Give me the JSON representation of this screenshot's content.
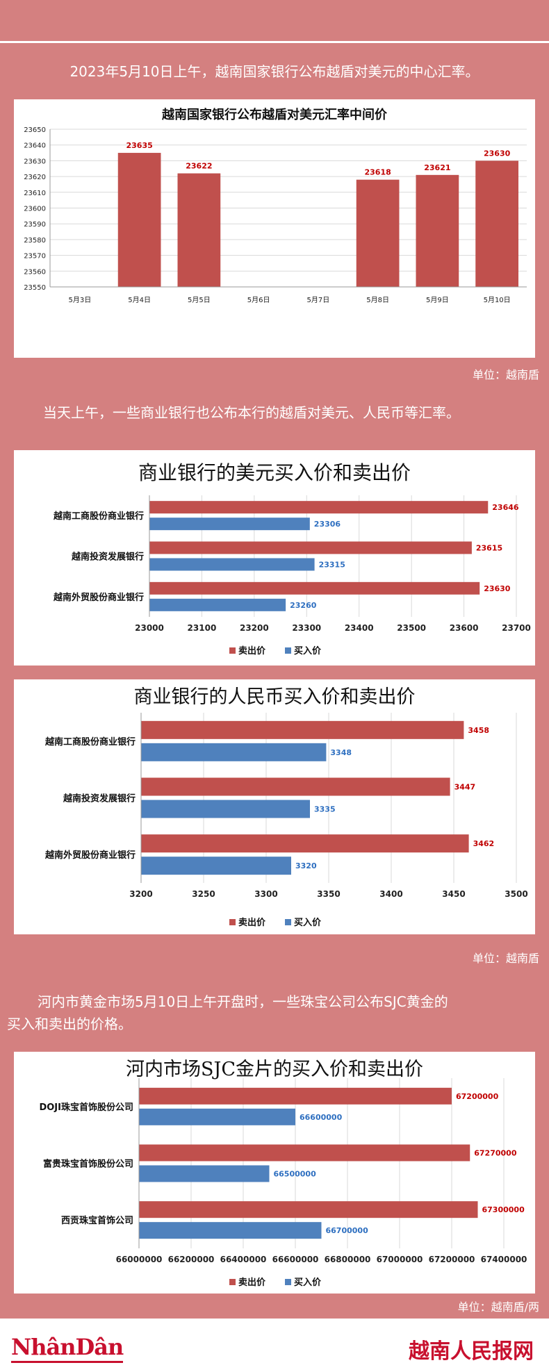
{
  "texts": {
    "intro1": "2023年5月10日上午，越南国家银行公布越盾对美元的中心汇率。",
    "unit1": "单位：越南盾",
    "intro2": "当天上午，一些商业银行也公布本行的越盾对美元、人民币等汇率。",
    "unit2": "单位：越南盾",
    "intro3a": "河内市黄金市场5月10日上午开盘时，一些珠宝公司公布SJC黄金的",
    "intro3b": "买入和卖出的价格。",
    "unit3": "单位：越南盾/两",
    "logo_left": "NhânDân",
    "logo_right": "越南人民报网"
  },
  "colors": {
    "sell": "#c0504d",
    "buy": "#4f81bd",
    "sell_label": "#c00000",
    "buy_label": "#2e6fc0",
    "background": "#d48080"
  },
  "chart_data": [
    {
      "type": "bar",
      "title": "越南国家银行公布越盾对美元汇率中间价",
      "categories": [
        "5月3日",
        "5月4日",
        "5月5日",
        "5月6日",
        "5月7日",
        "5月8日",
        "5月9日",
        "5月10日"
      ],
      "values": [
        null,
        23635,
        23622,
        null,
        null,
        23618,
        23621,
        23630
      ],
      "ylim": [
        23550,
        23650
      ],
      "yticks": [
        23550,
        23560,
        23570,
        23580,
        23590,
        23600,
        23610,
        23620,
        23630,
        23640,
        23650
      ],
      "grid": true
    },
    {
      "type": "bar",
      "orientation": "horizontal",
      "title": "商业银行的美元买入价和卖出价",
      "categories": [
        "越南工商股份商业银行",
        "越南投资发展银行",
        "越南外贸股份商业银行"
      ],
      "series": [
        {
          "name": "卖出价",
          "values": [
            23646,
            23615,
            23630
          ]
        },
        {
          "name": "买入价",
          "values": [
            23306,
            23315,
            23260
          ]
        }
      ],
      "xlim": [
        23000,
        23700
      ],
      "xticks": [
        23000,
        23100,
        23200,
        23300,
        23400,
        23500,
        23600,
        23700
      ],
      "grid": true,
      "legend": "bottom"
    },
    {
      "type": "bar",
      "orientation": "horizontal",
      "title": "商业银行的人民币买入价和卖出价",
      "categories": [
        "越南工商股份商业银行",
        "越南投资发展银行",
        "越南外贸股份商业银行"
      ],
      "series": [
        {
          "name": "卖出价",
          "values": [
            3458,
            3447,
            3462
          ]
        },
        {
          "name": "买入价",
          "values": [
            3348,
            3335,
            3320
          ]
        }
      ],
      "xlim": [
        3200,
        3500
      ],
      "xticks": [
        3200,
        3250,
        3300,
        3350,
        3400,
        3450,
        3500
      ],
      "grid": true,
      "legend": "bottom"
    },
    {
      "type": "bar",
      "orientation": "horizontal",
      "title": "河内市场SJC金片的买入价和卖出价",
      "categories": [
        "DOJI珠宝首饰股份公司",
        "富贵珠宝首饰股份公司",
        "西贡珠宝首饰公司"
      ],
      "series": [
        {
          "name": "卖出价",
          "values": [
            67200000,
            67270000,
            67300000
          ]
        },
        {
          "name": "买入价",
          "values": [
            66600000,
            66500000,
            66700000
          ]
        }
      ],
      "xlim": [
        66000000,
        67400000
      ],
      "xticks": [
        66000000,
        66200000,
        66400000,
        66600000,
        66800000,
        67000000,
        67200000,
        67400000
      ],
      "grid": true,
      "legend": "bottom"
    }
  ]
}
